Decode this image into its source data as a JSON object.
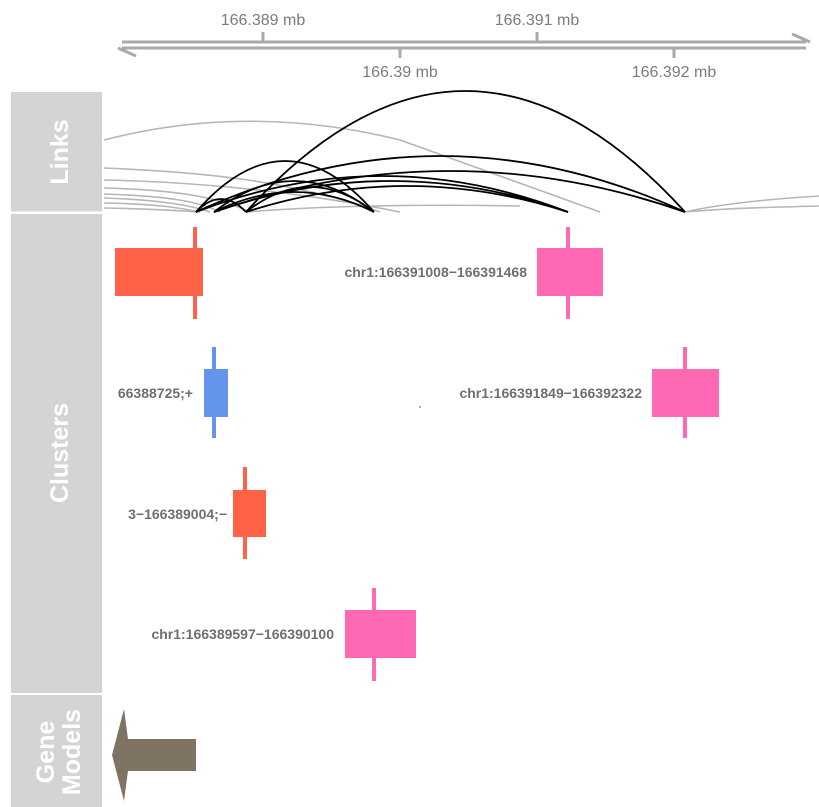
{
  "axis": {
    "top_labels": [
      "166.389 mb",
      "166.391 mb"
    ],
    "bottom_labels": [
      "166.39 mb",
      "166.392 mb"
    ]
  },
  "tracks": {
    "links": {
      "title": "Links"
    },
    "clusters": {
      "title": "Clusters"
    },
    "gene_models": {
      "title_line1": "Gene",
      "title_line2": "Models"
    }
  },
  "clusters": {
    "labels": [
      "chr1:166391008−166391468",
      "66388725;+",
      "chr1:166391849−166392322",
      "3−166389004;−",
      "chr1:166389597−166390100"
    ]
  },
  "colors": {
    "panel": "#d4d4d4",
    "axis": "#a9a9a9",
    "red": "#ff6347",
    "blue": "#6495ed",
    "pink": "#ff69b4",
    "gene": "#7f7363",
    "link_strong": "#000000",
    "link_weak": "#b6b6b6"
  }
}
